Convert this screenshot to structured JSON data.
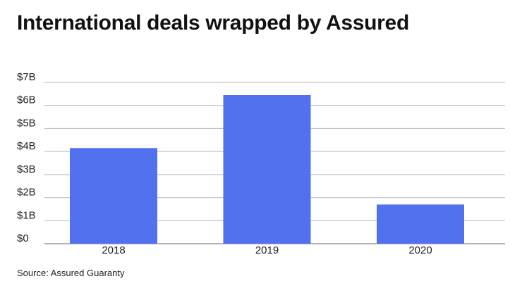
{
  "header": {
    "title": "International deals wrapped by Assured"
  },
  "footer": {
    "source": "Source: Assured Guaranty"
  },
  "colors": {
    "bar": "#5271ee",
    "grid": "#b8b8b8",
    "axis": "#888888"
  },
  "chart_data": {
    "type": "bar",
    "title": "International deals wrapped by Assured",
    "categories": [
      "2018",
      "2019",
      "2020"
    ],
    "values": [
      4.15,
      6.45,
      1.7
    ],
    "ylim": [
      0,
      7
    ],
    "yticks": [
      0,
      1,
      2,
      3,
      4,
      5,
      6,
      7
    ],
    "ytick_labels": [
      "$0",
      "$1B",
      "$2B",
      "$3B",
      "$4B",
      "$5B",
      "$6B",
      "$7B"
    ],
    "grid": true,
    "xlabel": "",
    "ylabel": ""
  }
}
